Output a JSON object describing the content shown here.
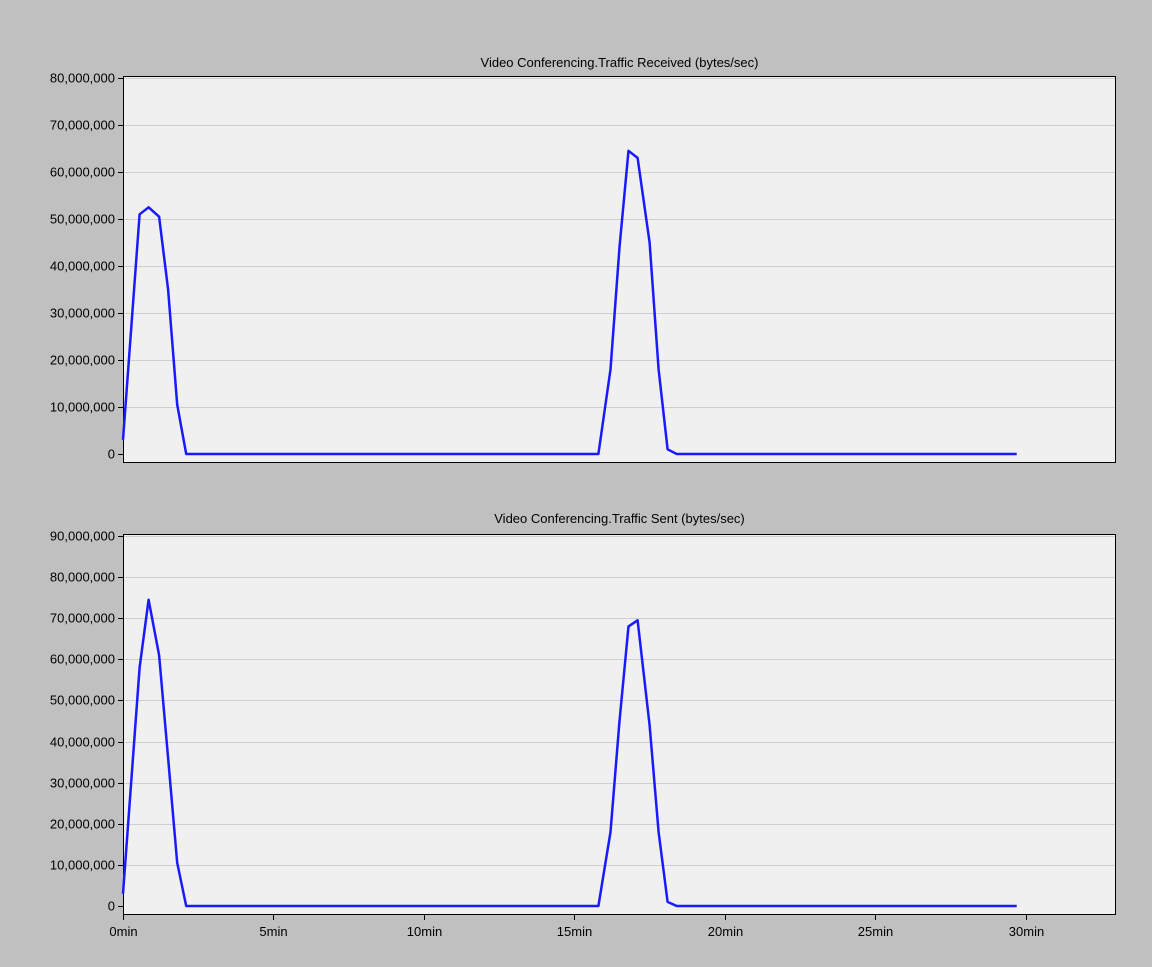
{
  "window": {
    "background": "#c0c0c0"
  },
  "style": {
    "plot_background": "#f0f0f0",
    "grid_color": "#cfcfcf",
    "axis_color": "#000000",
    "line_color": "#1a1aff",
    "text_color": "#000000"
  },
  "chart_data": [
    {
      "type": "line",
      "title": "Video Conferencing.Traffic Received (bytes/sec)",
      "xlabel": "",
      "ylabel": "",
      "xunit": "min",
      "xlim": [
        0,
        33
      ],
      "ylim": [
        0,
        80000000
      ],
      "yticks": [
        0,
        10000000,
        20000000,
        30000000,
        40000000,
        50000000,
        60000000,
        70000000,
        80000000
      ],
      "ytick_labels": [
        "0",
        "10,000,000",
        "20,000,000",
        "30,000,000",
        "40,000,000",
        "50,000,000",
        "60,000,000",
        "70,000,000",
        "80,000,000"
      ],
      "xticks": [],
      "xtick_labels": [],
      "grid": true,
      "series": [
        {
          "color": "#1a1aff",
          "x": [
            0,
            0.55,
            0.85,
            1.2,
            1.5,
            1.8,
            2.1,
            15.8,
            16.2,
            16.5,
            16.8,
            17.1,
            17.5,
            17.8,
            18.1,
            18.4,
            29.7
          ],
          "y": [
            3000000,
            51000000,
            52500000,
            50500000,
            35000000,
            10500000,
            0,
            0,
            18000000,
            44000000,
            64500000,
            63000000,
            45000000,
            18000000,
            1000000,
            0,
            0
          ]
        }
      ]
    },
    {
      "type": "line",
      "title": "Video Conferencing.Traffic Sent (bytes/sec)",
      "xlabel": "",
      "ylabel": "",
      "xunit": "min",
      "xlim": [
        0,
        33
      ],
      "ylim": [
        0,
        90000000
      ],
      "yticks": [
        0,
        10000000,
        20000000,
        30000000,
        40000000,
        50000000,
        60000000,
        70000000,
        80000000,
        90000000
      ],
      "ytick_labels": [
        "0",
        "10,000,000",
        "20,000,000",
        "30,000,000",
        "40,000,000",
        "50,000,000",
        "60,000,000",
        "70,000,000",
        "80,000,000",
        "90,000,000"
      ],
      "xticks": [
        0,
        5,
        10,
        15,
        20,
        25,
        30
      ],
      "xtick_labels": [
        "0min",
        "5min",
        "10min",
        "15min",
        "20min",
        "25min",
        "30min"
      ],
      "grid": true,
      "series": [
        {
          "color": "#1a1aff",
          "x": [
            0,
            0.55,
            0.85,
            1.2,
            1.5,
            1.8,
            2.1,
            15.8,
            16.2,
            16.5,
            16.8,
            17.1,
            17.5,
            17.8,
            18.1,
            18.4,
            29.7
          ],
          "y": [
            3000000,
            58000000,
            74500000,
            61000000,
            36000000,
            10500000,
            0,
            0,
            18000000,
            45000000,
            68000000,
            69500000,
            44000000,
            18000000,
            1000000,
            0,
            0
          ]
        }
      ]
    }
  ]
}
